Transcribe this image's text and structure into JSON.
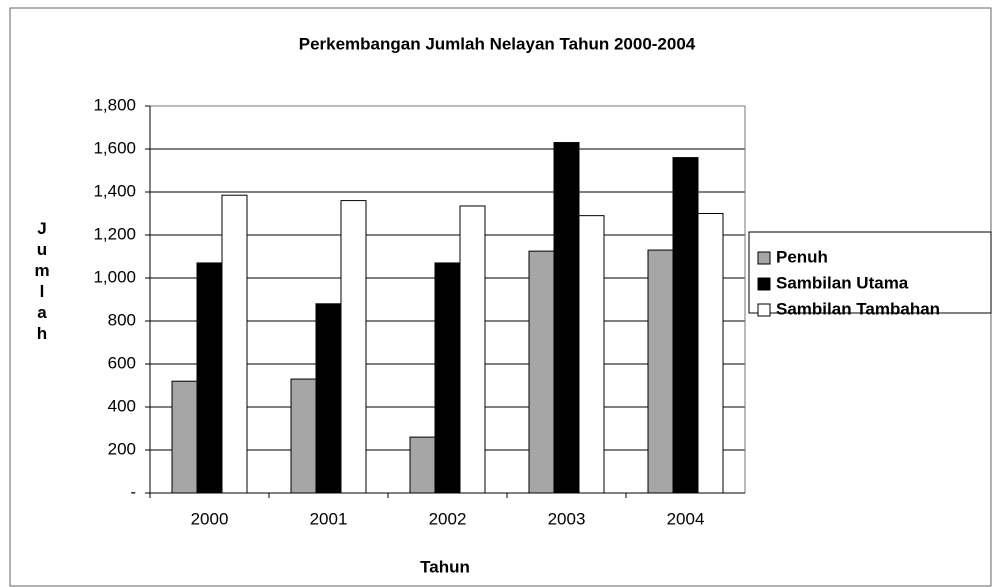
{
  "chart_data": {
    "type": "bar",
    "title": "Perkembangan Jumlah Nelayan Tahun 2000-2004",
    "x_label": "Tahun",
    "y_label": "Jumlah",
    "categories": [
      "2000",
      "2001",
      "2002",
      "2003",
      "2004"
    ],
    "series": [
      {
        "name": "Penuh",
        "color": "#a6a6a6",
        "values": [
          520,
          530,
          260,
          1125,
          1130
        ]
      },
      {
        "name": "Sambilan Utama",
        "color": "#000000",
        "values": [
          1070,
          880,
          1070,
          1630,
          1560
        ]
      },
      {
        "name": "Sambilan Tambahan",
        "color": "#ffffff",
        "values": [
          1385,
          1360,
          1335,
          1290,
          1300
        ]
      }
    ],
    "ylim": [
      0,
      1800
    ],
    "yticks": [
      {
        "value": 0,
        "label": "-"
      },
      200,
      400,
      600,
      800,
      {
        "value": 1000,
        "label": "1,000"
      },
      {
        "value": 1200,
        "label": "1,200"
      },
      {
        "value": 1400,
        "label": "1,400"
      },
      {
        "value": 1600,
        "label": "1,600"
      },
      {
        "value": 1800,
        "label": "1,800"
      }
    ],
    "grid": true,
    "legend": "right"
  }
}
